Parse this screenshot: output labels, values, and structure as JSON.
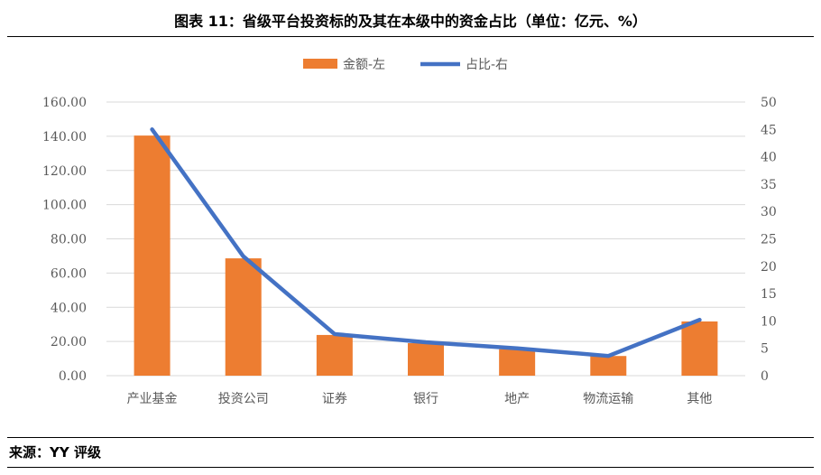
{
  "title": "图表 11：省级平台投资标的及其在本级中的资金占比（单位：亿元、%）",
  "source": "来源：YY 评级",
  "chart_data": {
    "type": "bar+line",
    "categories": [
      "产业基金",
      "投资公司",
      "证券",
      "银行",
      "地产",
      "物流运输",
      "其他"
    ],
    "series": [
      {
        "name": "金额-左",
        "type": "bar",
        "axis": "left",
        "color": "#ED7D31",
        "values": [
          140.4,
          68.6,
          23.8,
          19.0,
          15.5,
          11.5,
          31.7
        ]
      },
      {
        "name": "占比-右",
        "type": "line",
        "axis": "right",
        "color": "#4472C4",
        "values": [
          45.0,
          21.8,
          7.6,
          6.1,
          5.0,
          3.6,
          10.2
        ]
      }
    ],
    "left_axis": {
      "ylim": [
        0,
        160
      ],
      "ticks": [
        "0.00",
        "20.00",
        "40.00",
        "60.00",
        "80.00",
        "100.00",
        "120.00",
        "140.00",
        "160.00"
      ]
    },
    "right_axis": {
      "ylim": [
        0,
        50
      ],
      "ticks": [
        "0",
        "5",
        "10",
        "15",
        "20",
        "25",
        "30",
        "35",
        "40",
        "45",
        "50"
      ]
    },
    "grid": true,
    "legend": "top"
  }
}
